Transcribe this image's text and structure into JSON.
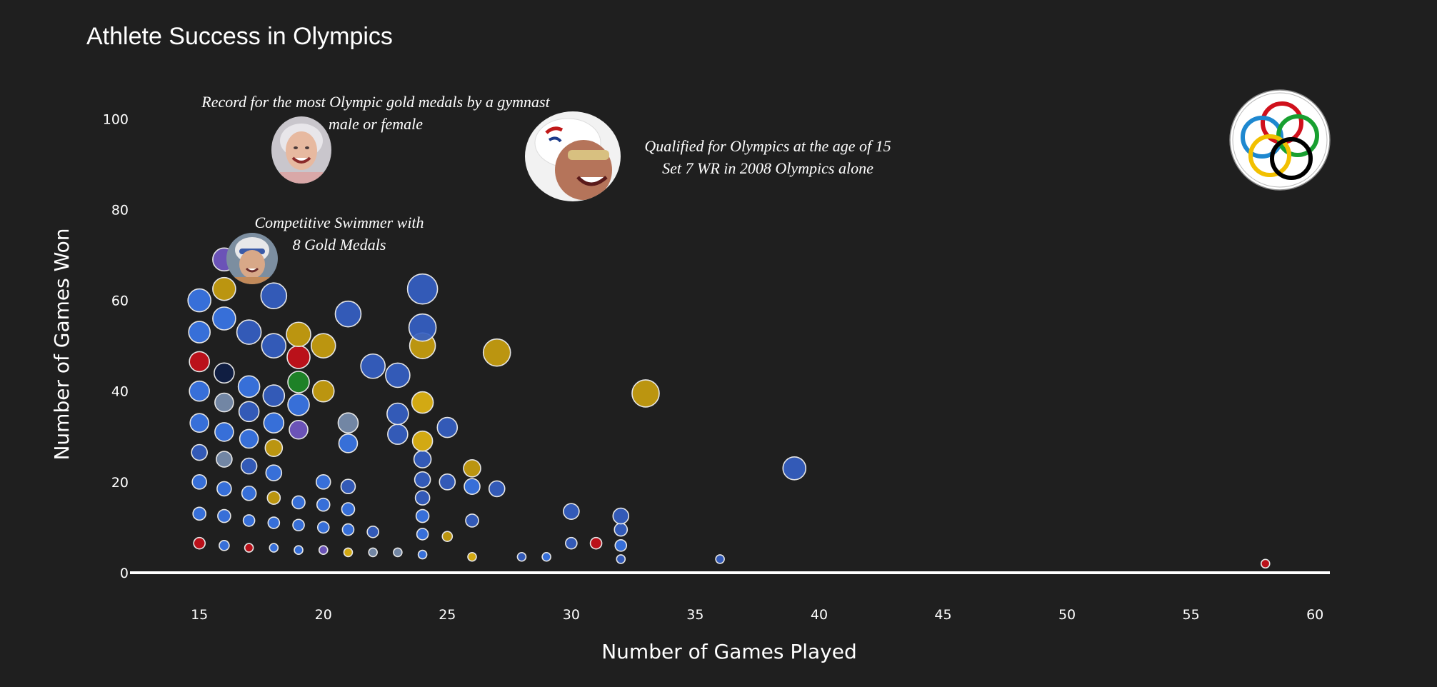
{
  "chart_data": {
    "type": "scatter",
    "title": "Athlete Success in Olympics",
    "xlabel": "Number of Games Played",
    "ylabel": "Number of Games Won",
    "xlim": [
      12.2,
      60.6
    ],
    "ylim": [
      0,
      112
    ],
    "xticks": [
      15,
      20,
      25,
      30,
      35,
      40,
      45,
      50,
      55,
      60
    ],
    "yticks": [
      0,
      20,
      40,
      60,
      80,
      100
    ],
    "grid": false,
    "legend": "none",
    "colors": {
      "blue": "#3a76e8",
      "blue2": "#3560c4",
      "blue3": "#2a4fa8",
      "gold": "#c9a00f",
      "gold2": "#e2b512",
      "red": "#c8101a",
      "green": "#1e8a28",
      "purple": "#7258c4",
      "navy": "#0f1e45",
      "gray": "#7a8fb0"
    },
    "points": [
      {
        "x": 15,
        "y": 6.5,
        "s": 8,
        "c": "red"
      },
      {
        "x": 15,
        "y": 13,
        "s": 9,
        "c": "blue"
      },
      {
        "x": 15,
        "y": 20,
        "s": 10,
        "c": "blue"
      },
      {
        "x": 15,
        "y": 26.5,
        "s": 11,
        "c": "blue2"
      },
      {
        "x": 15,
        "y": 33,
        "s": 13,
        "c": "blue"
      },
      {
        "x": 15,
        "y": 40,
        "s": 14,
        "c": "blue"
      },
      {
        "x": 15,
        "y": 46.5,
        "s": 14,
        "c": "red"
      },
      {
        "x": 15,
        "y": 53,
        "s": 15,
        "c": "blue"
      },
      {
        "x": 15,
        "y": 60,
        "s": 16,
        "c": "blue"
      },
      {
        "x": 16,
        "y": 6,
        "s": 7,
        "c": "blue"
      },
      {
        "x": 16,
        "y": 12.5,
        "s": 9,
        "c": "blue"
      },
      {
        "x": 16,
        "y": 18.5,
        "s": 10,
        "c": "blue"
      },
      {
        "x": 16,
        "y": 25,
        "s": 11,
        "c": "gray"
      },
      {
        "x": 16,
        "y": 31,
        "s": 13,
        "c": "blue"
      },
      {
        "x": 16,
        "y": 37.5,
        "s": 13,
        "c": "gray"
      },
      {
        "x": 16,
        "y": 44,
        "s": 14,
        "c": "navy"
      },
      {
        "x": 16,
        "y": 56,
        "s": 16,
        "c": "blue"
      },
      {
        "x": 16,
        "y": 62.5,
        "s": 16,
        "c": "gold"
      },
      {
        "x": 16,
        "y": 69,
        "s": 16,
        "c": "purple"
      },
      {
        "x": 17,
        "y": 5.5,
        "s": 6,
        "c": "red"
      },
      {
        "x": 17,
        "y": 11.5,
        "s": 8,
        "c": "blue"
      },
      {
        "x": 17,
        "y": 17.5,
        "s": 10,
        "c": "blue"
      },
      {
        "x": 17,
        "y": 23.5,
        "s": 11,
        "c": "blue2"
      },
      {
        "x": 17,
        "y": 29.5,
        "s": 13,
        "c": "blue"
      },
      {
        "x": 17,
        "y": 35.5,
        "s": 14,
        "c": "blue2"
      },
      {
        "x": 17,
        "y": 41,
        "s": 15,
        "c": "blue"
      },
      {
        "x": 17,
        "y": 53,
        "s": 17,
        "c": "blue2"
      },
      {
        "x": 18,
        "y": 5.5,
        "s": 6,
        "c": "blue"
      },
      {
        "x": 18,
        "y": 11,
        "s": 8,
        "c": "blue"
      },
      {
        "x": 18,
        "y": 16.5,
        "s": 9,
        "c": "gold"
      },
      {
        "x": 18,
        "y": 22,
        "s": 11,
        "c": "blue"
      },
      {
        "x": 18,
        "y": 27.5,
        "s": 12,
        "c": "gold"
      },
      {
        "x": 18,
        "y": 33,
        "s": 14,
        "c": "blue"
      },
      {
        "x": 18,
        "y": 39,
        "s": 15,
        "c": "blue2"
      },
      {
        "x": 18,
        "y": 50,
        "s": 17,
        "c": "blue2"
      },
      {
        "x": 18,
        "y": 61,
        "s": 18,
        "c": "blue2"
      },
      {
        "x": 19,
        "y": 5,
        "s": 6,
        "c": "blue"
      },
      {
        "x": 19,
        "y": 10.5,
        "s": 8,
        "c": "blue"
      },
      {
        "x": 19,
        "y": 15.5,
        "s": 9,
        "c": "blue"
      },
      {
        "x": 19,
        "y": 31.5,
        "s": 13,
        "c": "purple"
      },
      {
        "x": 19,
        "y": 37,
        "s": 15,
        "c": "blue"
      },
      {
        "x": 19,
        "y": 42,
        "s": 15,
        "c": "green"
      },
      {
        "x": 19,
        "y": 47.5,
        "s": 16,
        "c": "red"
      },
      {
        "x": 19,
        "y": 52.5,
        "s": 17,
        "c": "gold"
      },
      {
        "x": 20,
        "y": 5,
        "s": 6,
        "c": "purple"
      },
      {
        "x": 20,
        "y": 10,
        "s": 8,
        "c": "blue"
      },
      {
        "x": 20,
        "y": 15,
        "s": 9,
        "c": "blue"
      },
      {
        "x": 20,
        "y": 20,
        "s": 10,
        "c": "blue"
      },
      {
        "x": 20,
        "y": 40,
        "s": 15,
        "c": "gold"
      },
      {
        "x": 20,
        "y": 50,
        "s": 17,
        "c": "gold"
      },
      {
        "x": 21,
        "y": 4.5,
        "s": 6,
        "c": "gold2"
      },
      {
        "x": 21,
        "y": 9.5,
        "s": 8,
        "c": "blue"
      },
      {
        "x": 21,
        "y": 14,
        "s": 9,
        "c": "blue"
      },
      {
        "x": 21,
        "y": 19,
        "s": 10,
        "c": "blue2"
      },
      {
        "x": 21,
        "y": 28.5,
        "s": 13,
        "c": "blue"
      },
      {
        "x": 21,
        "y": 33,
        "s": 14,
        "c": "gray"
      },
      {
        "x": 21,
        "y": 57,
        "s": 18,
        "c": "blue2"
      },
      {
        "x": 22,
        "y": 4.5,
        "s": 6,
        "c": "gray"
      },
      {
        "x": 22,
        "y": 9,
        "s": 8,
        "c": "blue2"
      },
      {
        "x": 22,
        "y": 45.5,
        "s": 17,
        "c": "blue2"
      },
      {
        "x": 23,
        "y": 4.5,
        "s": 6,
        "c": "gray"
      },
      {
        "x": 23,
        "y": 30.5,
        "s": 14,
        "c": "blue2"
      },
      {
        "x": 23,
        "y": 35,
        "s": 15,
        "c": "blue2"
      },
      {
        "x": 23,
        "y": 43.5,
        "s": 17,
        "c": "blue2"
      },
      {
        "x": 24,
        "y": 4,
        "s": 6,
        "c": "blue"
      },
      {
        "x": 24,
        "y": 8.5,
        "s": 8,
        "c": "blue"
      },
      {
        "x": 24,
        "y": 12.5,
        "s": 9,
        "c": "blue"
      },
      {
        "x": 24,
        "y": 16.5,
        "s": 10,
        "c": "blue2"
      },
      {
        "x": 24,
        "y": 20.5,
        "s": 11,
        "c": "blue2"
      },
      {
        "x": 24,
        "y": 25,
        "s": 12,
        "c": "blue2"
      },
      {
        "x": 24,
        "y": 29,
        "s": 14,
        "c": "gold2"
      },
      {
        "x": 24,
        "y": 37.5,
        "s": 15,
        "c": "gold2"
      },
      {
        "x": 24,
        "y": 50,
        "s": 18,
        "c": "gold"
      },
      {
        "x": 24,
        "y": 54,
        "s": 19,
        "c": "blue2"
      },
      {
        "x": 24,
        "y": 62.5,
        "s": 21,
        "c": "blue2"
      },
      {
        "x": 25,
        "y": 8,
        "s": 7,
        "c": "gold"
      },
      {
        "x": 25,
        "y": 20,
        "s": 11,
        "c": "blue2"
      },
      {
        "x": 25,
        "y": 32,
        "s": 14,
        "c": "blue2"
      },
      {
        "x": 26,
        "y": 3.5,
        "s": 6,
        "c": "gold2"
      },
      {
        "x": 26,
        "y": 11.5,
        "s": 9,
        "c": "blue2"
      },
      {
        "x": 26,
        "y": 19,
        "s": 11,
        "c": "blue"
      },
      {
        "x": 26,
        "y": 23,
        "s": 12,
        "c": "gold"
      },
      {
        "x": 27,
        "y": 18.5,
        "s": 11,
        "c": "blue2"
      },
      {
        "x": 27,
        "y": 48.5,
        "s": 19,
        "c": "gold"
      },
      {
        "x": 28,
        "y": 3.5,
        "s": 6,
        "c": "blue2"
      },
      {
        "x": 29,
        "y": 3.5,
        "s": 6,
        "c": "blue"
      },
      {
        "x": 30,
        "y": 6.5,
        "s": 8,
        "c": "blue2"
      },
      {
        "x": 30,
        "y": 13.5,
        "s": 11,
        "c": "blue2"
      },
      {
        "x": 31,
        "y": 6.5,
        "s": 8,
        "c": "red"
      },
      {
        "x": 32,
        "y": 3,
        "s": 6,
        "c": "blue2"
      },
      {
        "x": 32,
        "y": 6,
        "s": 8,
        "c": "blue"
      },
      {
        "x": 32,
        "y": 9.5,
        "s": 9,
        "c": "blue2"
      },
      {
        "x": 32,
        "y": 12.5,
        "s": 11,
        "c": "blue2"
      },
      {
        "x": 33,
        "y": 39.5,
        "s": 19,
        "c": "gold"
      },
      {
        "x": 36,
        "y": 3,
        "s": 6,
        "c": "blue2"
      },
      {
        "x": 39,
        "y": 23,
        "s": 16,
        "c": "blue2"
      },
      {
        "x": 58,
        "y": 2,
        "s": 6,
        "c": "red"
      }
    ],
    "annotations": [
      {
        "line1": "Record for the most Olympic gold medals by a gymnast",
        "line2": "male or female"
      },
      {
        "line1": "Qualified for Olympics at the age of 15",
        "line2": "Set 7 WR in 2008 Olympics alone"
      },
      {
        "line1": "Competitive Swimmer with",
        "line2": "8 Gold Medals"
      }
    ]
  }
}
